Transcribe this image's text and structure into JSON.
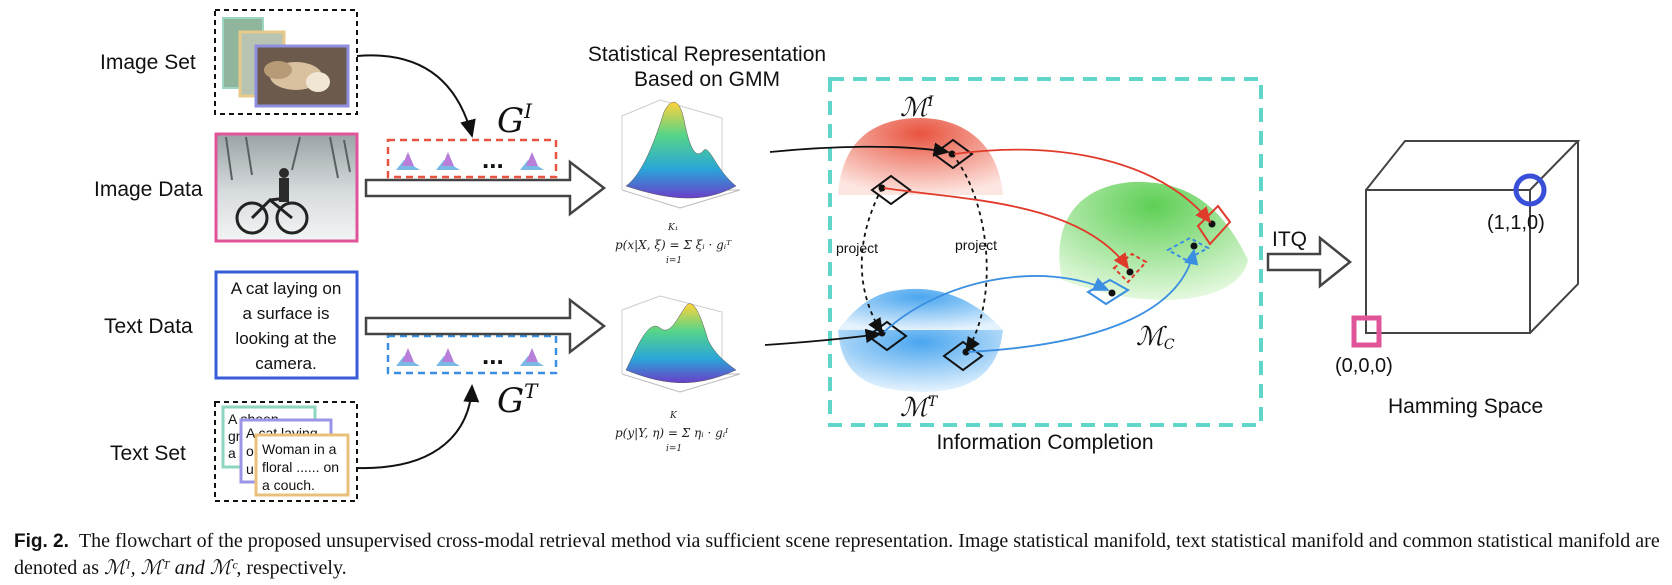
{
  "left_labels": {
    "image_set": "Image Set",
    "image_data": "Image Data",
    "text_data": "Text Data",
    "text_set": "Text Set"
  },
  "text_data_box": [
    "A cat laying on",
    "a surface is",
    "looking at the",
    "camera."
  ],
  "text_set_cards": {
    "card1": [
      "A sheep",
      "gr",
      "a"
    ],
    "card2": [
      "A cat laying",
      "on",
      "up"
    ],
    "card3": [
      "Woman in a",
      "floral ......  on",
      "a couch."
    ]
  },
  "gmm_title": [
    "Statistical Representation",
    "Based on GMM"
  ],
  "g_image": {
    "base": "G",
    "sup": "I"
  },
  "g_text": {
    "base": "G",
    "sup": "T"
  },
  "dots": "...",
  "formula_image": "p(x|X, ξ) = Σ ξᵢ · gᵢᵀ",
  "formula_text": "p(y|Y, η) = Σ ηᵢ · gᵢᴵ",
  "formula_sum_upper_image": "K₁",
  "formula_sum_upper_text": "K",
  "formula_sum_lower": "i=1",
  "manifold_image": {
    "base": "ℳ",
    "sup": "I"
  },
  "manifold_text": {
    "base": "ℳ",
    "sup": "T"
  },
  "manifold_common": {
    "base": "ℳ",
    "sub": "C"
  },
  "project_left": "project",
  "project_right": "project",
  "info_completion": "Information Completion",
  "itq": "ITQ",
  "cube_vertex_high": "(1,1,0)",
  "cube_vertex_low": "(0,0,0)",
  "hamming": "Hamming Space",
  "caption": {
    "label": "Fig. 2.",
    "text": "The flowchart of the proposed unsupervised cross-modal retrieval method via sufficient scene representation. Image statistical manifold, text statistical manifold and common statistical manifold are denoted as ",
    "symbols": "ℳᴵ, ℳᵀ and ℳᶜ",
    "tail": ", respectively."
  },
  "colors": {
    "image_red": "#e8543f",
    "text_blue": "#3b8fe0",
    "teal_dashed": "#5fd6c8",
    "pink_box": "#e0559a",
    "blue_box": "#3a5bd8",
    "green_manifold": "#7fdc6a"
  }
}
